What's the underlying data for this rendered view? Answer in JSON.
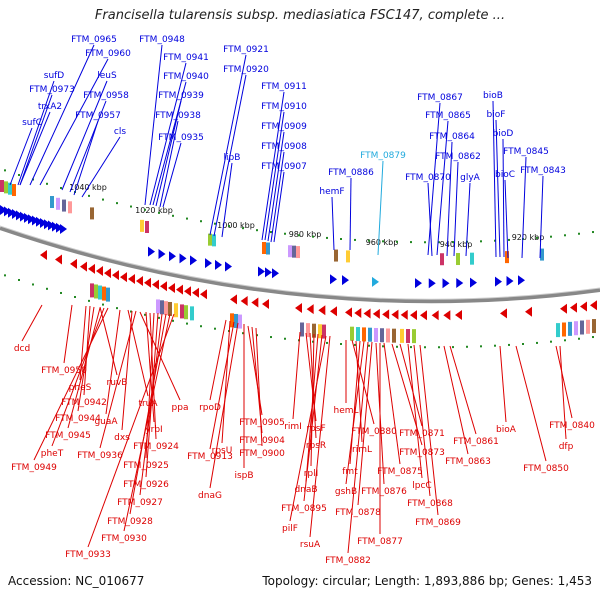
{
  "title": "Francisella tularensis subsp. mediasiatica FSC147, complete ...",
  "footer": {
    "accession": "Accession: NC_010677",
    "summary": "Topology: circular; Length: 1,893,886 bp; Genes: 1,453"
  },
  "colors": {
    "forward_strand": "#0000dd",
    "reverse_strand": "#dd0000",
    "highlight": "#22aadd",
    "backbone": "#888888",
    "ticks": "#228822"
  },
  "kbp_ticks": [
    "1040 kbp",
    "1020 kbp",
    "1000 kbp",
    "980 kbp",
    "960 kbp",
    "940 kbp",
    "920 kbp"
  ],
  "forward_genes": [
    "FTM_0965",
    "FTM_0960",
    "sufD",
    "FTM_0973",
    "trxA2",
    "sufC",
    "leuS",
    "FTM_0958",
    "FTM_0957",
    "cls",
    "FTM_0948",
    "FTM_0941",
    "FTM_0940",
    "FTM_0939",
    "FTM_0938",
    "FTM_0935",
    "FTM_0921",
    "FTM_0920",
    "lipB",
    "FTM_0911",
    "FTM_0910",
    "FTM_0909",
    "FTM_0908",
    "FTM_0907",
    "hemF",
    "FTM_0886",
    "FTM_0879",
    "FTM_0867",
    "FTM_0865",
    "FTM_0864",
    "FTM_0862",
    "FTM_0870",
    "glyA",
    "bioB",
    "bioF",
    "bioD",
    "bioC",
    "FTM_0845",
    "FTM_0843"
  ],
  "reverse_genes": [
    "dcd",
    "FTM_0950",
    "pheS",
    "FTM_0942",
    "ruvB",
    "FTM_0944",
    "FTM_0945",
    "pheT",
    "FTM_0949",
    "guaA",
    "truA",
    "dxs",
    "FTM_0936",
    "ppa",
    "yrbI",
    "FTM_0924",
    "FTM_0925",
    "FTM_0926",
    "FTM_0927",
    "FTM_0928",
    "FTM_0930",
    "FTM_0933",
    "rpoD",
    "rpsU",
    "FTM_0913",
    "dnaG",
    "ispB",
    "FTM_0905",
    "FTM_0904",
    "FTM_0900",
    "rimI",
    "rpsF",
    "rpsR",
    "rplI",
    "dnaB",
    "FTM_0895",
    "pilF",
    "rsuA",
    "hemL",
    "FTM_0880",
    "rimL",
    "fmt",
    "gshB",
    "FTM_0882",
    "FTM_0878",
    "FTM_0876",
    "FTM_0877",
    "FTM_0875",
    "FTM_0873",
    "FTM_0871",
    "lpcC",
    "FTM_0868",
    "FTM_0869",
    "FTM_0861",
    "FTM_0863",
    "bioA",
    "FTM_0850",
    "FTM_0840",
    "dfp"
  ]
}
